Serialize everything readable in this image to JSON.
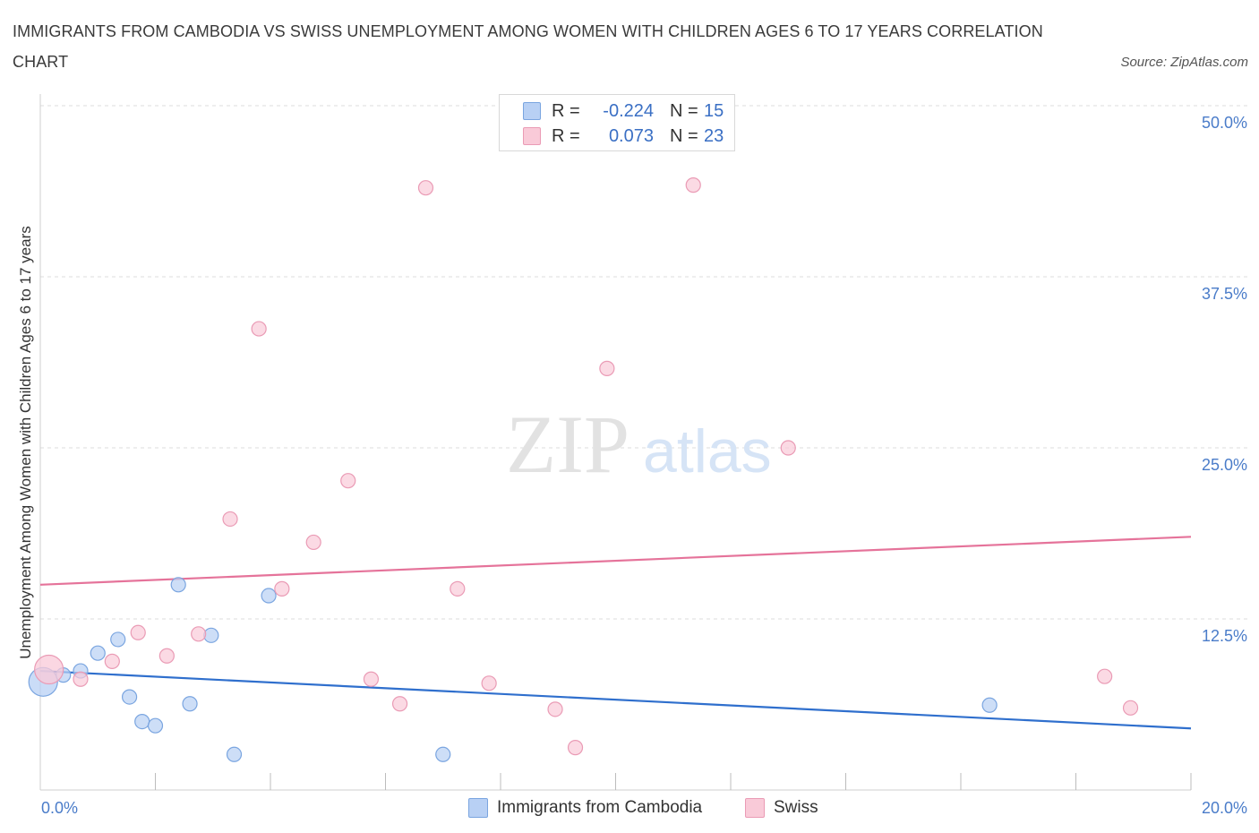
{
  "title": "IMMIGRANTS FROM CAMBODIA VS SWISS UNEMPLOYMENT AMONG WOMEN WITH CHILDREN AGES 6 TO 17 YEARS CORRELATION CHART",
  "source": "Source: ZipAtlas.com",
  "watermark": {
    "zip": "ZIP",
    "atlas": "atlas"
  },
  "legend": {
    "r_label": "R =",
    "n_label": "N =",
    "rows": [
      {
        "r": "-0.224",
        "n": "15"
      },
      {
        "r": "0.073",
        "n": "23"
      }
    ]
  },
  "bottom_legend": [
    "Immigrants from Cambodia",
    "Swiss"
  ],
  "colors": {
    "cambodia_fill": "#b8d0f4",
    "cambodia_stroke": "#7aa5e0",
    "cambodia_line": "#2f6fcd",
    "swiss_fill": "#f9cad8",
    "swiss_stroke": "#ea9bb5",
    "swiss_line": "#e5739a",
    "tick_text": "#4a7cc9",
    "grid": "#dedede"
  },
  "chart_data": {
    "type": "scatter",
    "title": "IMMIGRANTS FROM CAMBODIA VS SWISS UNEMPLOYMENT AMONG WOMEN WITH CHILDREN AGES 6 TO 17 YEARS CORRELATION CHART",
    "xlabel": "",
    "ylabel": "Unemployment Among Women with Children Ages 6 to 17 years",
    "xlim": [
      0,
      20
    ],
    "ylim": [
      0,
      50
    ],
    "x_tick_labels": [
      "0.0%",
      "20.0%"
    ],
    "y_ticks": [
      12.5,
      25.0,
      37.5,
      50.0
    ],
    "y_tick_labels": [
      "12.5%",
      "25.0%",
      "37.5%",
      "50.0%"
    ],
    "grid": true,
    "legend_position": "top-center",
    "series": [
      {
        "name": "Immigrants from Cambodia",
        "r": -0.224,
        "n": 15,
        "points": [
          {
            "x": 0.05,
            "y": 7.9,
            "big": true
          },
          {
            "x": 0.4,
            "y": 8.4
          },
          {
            "x": 0.7,
            "y": 8.7
          },
          {
            "x": 1.0,
            "y": 10.0
          },
          {
            "x": 1.35,
            "y": 11.0
          },
          {
            "x": 1.55,
            "y": 6.8
          },
          {
            "x": 1.77,
            "y": 5.0
          },
          {
            "x": 2.0,
            "y": 4.7
          },
          {
            "x": 2.4,
            "y": 15.0
          },
          {
            "x": 2.6,
            "y": 6.3
          },
          {
            "x": 2.97,
            "y": 11.3
          },
          {
            "x": 3.37,
            "y": 2.6
          },
          {
            "x": 3.97,
            "y": 14.2
          },
          {
            "x": 7.0,
            "y": 2.6
          },
          {
            "x": 16.5,
            "y": 6.2
          }
        ],
        "trend": {
          "x": [
            0,
            20
          ],
          "y": [
            8.7,
            4.5
          ]
        }
      },
      {
        "name": "Swiss",
        "r": 0.073,
        "n": 23,
        "points": [
          {
            "x": 0.15,
            "y": 8.8,
            "big": true
          },
          {
            "x": 0.7,
            "y": 8.1
          },
          {
            "x": 1.25,
            "y": 9.4
          },
          {
            "x": 1.7,
            "y": 11.5
          },
          {
            "x": 2.2,
            "y": 9.8
          },
          {
            "x": 2.75,
            "y": 11.4
          },
          {
            "x": 3.3,
            "y": 19.8
          },
          {
            "x": 3.8,
            "y": 33.7
          },
          {
            "x": 4.2,
            "y": 14.7
          },
          {
            "x": 4.75,
            "y": 18.1
          },
          {
            "x": 5.35,
            "y": 22.6
          },
          {
            "x": 5.75,
            "y": 8.1
          },
          {
            "x": 6.25,
            "y": 6.3
          },
          {
            "x": 6.7,
            "y": 44.0
          },
          {
            "x": 7.25,
            "y": 14.7
          },
          {
            "x": 7.8,
            "y": 7.8
          },
          {
            "x": 8.95,
            "y": 5.9
          },
          {
            "x": 9.3,
            "y": 3.1
          },
          {
            "x": 9.85,
            "y": 30.8
          },
          {
            "x": 11.35,
            "y": 44.2
          },
          {
            "x": 13.0,
            "y": 25.0
          },
          {
            "x": 18.5,
            "y": 8.3
          },
          {
            "x": 18.95,
            "y": 6.0
          }
        ],
        "trend": {
          "x": [
            0,
            20
          ],
          "y": [
            15.0,
            18.5
          ]
        }
      }
    ]
  }
}
